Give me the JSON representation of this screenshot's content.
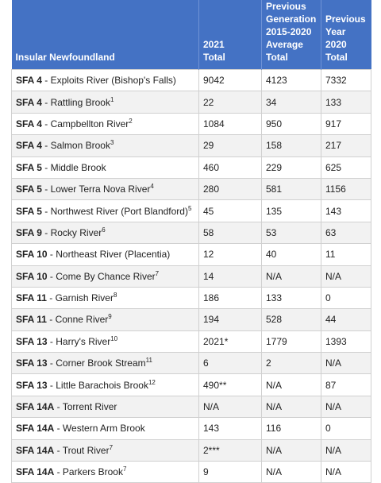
{
  "table": {
    "headers": {
      "col1": "Insular Newfoundland",
      "col2": [
        "2021",
        "Total"
      ],
      "col3": [
        "Previous",
        "Generation",
        "2015-2020",
        "Average",
        "Total"
      ],
      "col4": [
        "Previous",
        "Year",
        "2020",
        "Total"
      ]
    },
    "rows": [
      {
        "sfa": "SFA 4",
        "river": " - Exploits River (Bishop's Falls)",
        "note": "",
        "total_2021": "9042",
        "avg_2015_2020": "4123",
        "total_2020": "7332"
      },
      {
        "sfa": "SFA 4",
        "river": " - Rattling Brook",
        "note": "1",
        "total_2021": "22",
        "avg_2015_2020": "34",
        "total_2020": "133"
      },
      {
        "sfa": "SFA 4",
        "river": " - Campbellton River",
        "note": "2",
        "total_2021": "1084",
        "avg_2015_2020": "950",
        "total_2020": "917"
      },
      {
        "sfa": "SFA 4",
        "river": " - Salmon Brook",
        "note": "3",
        "total_2021": "29",
        "avg_2015_2020": "158",
        "total_2020": "217"
      },
      {
        "sfa": "SFA 5",
        "river": " - Middle Brook",
        "note": "",
        "total_2021": "460",
        "avg_2015_2020": "229",
        "total_2020": "625"
      },
      {
        "sfa": "SFA 5",
        "river": " - Lower Terra Nova River",
        "note": "4",
        "total_2021": "280",
        "avg_2015_2020": "581",
        "total_2020": "1156"
      },
      {
        "sfa": "SFA 5",
        "river": " - Northwest River (Port Blandford)",
        "note": "5",
        "total_2021": "45",
        "avg_2015_2020": "135",
        "total_2020": "143"
      },
      {
        "sfa": "SFA 9",
        "river": " - Rocky River",
        "note": "6",
        "total_2021": "58",
        "avg_2015_2020": "53",
        "total_2020": "63"
      },
      {
        "sfa": "SFA 10",
        "river": " - Northeast River (Placentia)",
        "note": "",
        "total_2021": "12",
        "avg_2015_2020": "40",
        "total_2020": "11"
      },
      {
        "sfa": "SFA 10",
        "river": " - Come By Chance River",
        "note": "7",
        "total_2021": "14",
        "avg_2015_2020": "N/A",
        "total_2020": "N/A"
      },
      {
        "sfa": "SFA 11",
        "river": " - Garnish River",
        "note": "8",
        "total_2021": "186",
        "avg_2015_2020": "133",
        "total_2020": "0"
      },
      {
        "sfa": "SFA 11",
        "river": " - Conne River",
        "note": "9",
        "total_2021": "194",
        "avg_2015_2020": "528",
        "total_2020": "44"
      },
      {
        "sfa": "SFA 13",
        "river": " - Harry's River",
        "note": "10",
        "total_2021": "2021*",
        "avg_2015_2020": "1779",
        "total_2020": "1393"
      },
      {
        "sfa": "SFA 13",
        "river": " - Corner Brook Stream",
        "note": "11",
        "total_2021": "6",
        "avg_2015_2020": "2",
        "total_2020": "N/A"
      },
      {
        "sfa": "SFA 13",
        "river": " - Little Barachois Brook",
        "note": "12",
        "total_2021": "490**",
        "avg_2015_2020": "N/A",
        "total_2020": "87"
      },
      {
        "sfa": "SFA 14A",
        "river": " - Torrent River",
        "note": "",
        "total_2021": "N/A",
        "avg_2015_2020": "N/A",
        "total_2020": "N/A"
      },
      {
        "sfa": "SFA 14A",
        "river": " - Western Arm Brook",
        "note": "",
        "total_2021": "143",
        "avg_2015_2020": "116",
        "total_2020": "0"
      },
      {
        "sfa": "SFA 14A",
        "river": " - Trout River",
        "note": "7",
        "total_2021": "2***",
        "avg_2015_2020": "N/A",
        "total_2020": "N/A"
      },
      {
        "sfa": "SFA 14A",
        "river": " - Parkers Brook",
        "note": "7",
        "total_2021": "9",
        "avg_2015_2020": "N/A",
        "total_2020": "N/A"
      }
    ]
  },
  "colors": {
    "header_bg": "#4472c4",
    "header_text": "#ffffff",
    "stripe": "#f2f2f2"
  }
}
